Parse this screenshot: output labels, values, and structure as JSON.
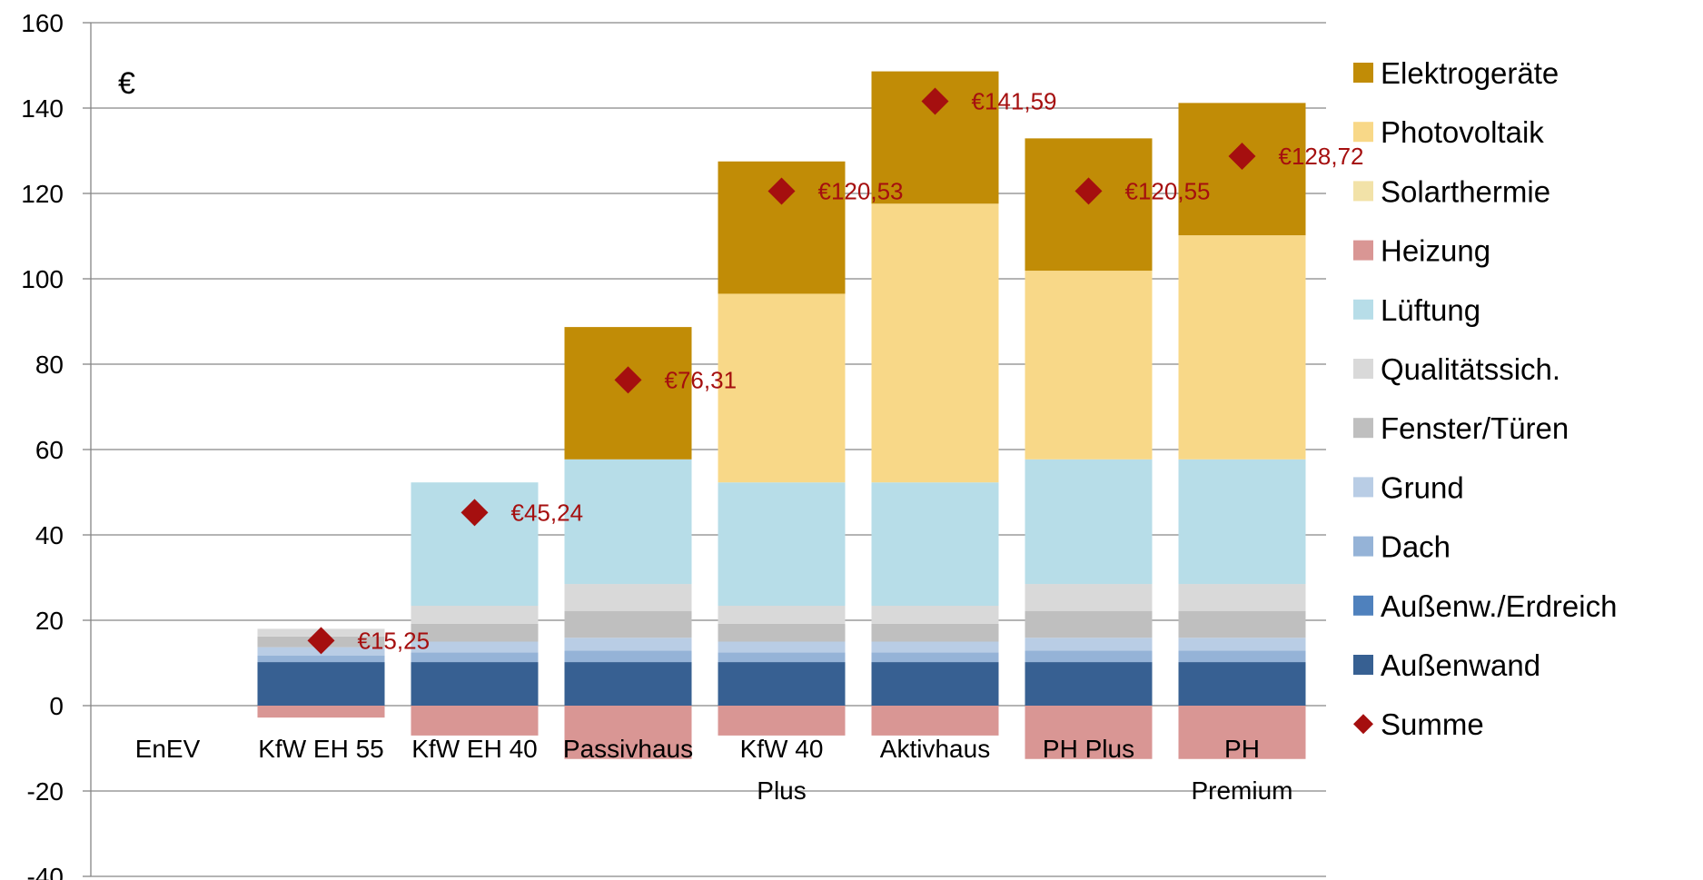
{
  "chart_data": {
    "type": "bar",
    "stacked": true,
    "unit_label": "€",
    "ylim": [
      -40,
      160
    ],
    "yticks": [
      -40,
      -20,
      0,
      20,
      40,
      60,
      80,
      100,
      120,
      140,
      160
    ],
    "grid": true,
    "legend_position": "right",
    "categories": [
      [
        "EnEV"
      ],
      [
        "KfW EH 55"
      ],
      [
        "KfW EH 40"
      ],
      [
        "Passivhaus"
      ],
      [
        "KfW 40",
        "Plus"
      ],
      [
        "Aktivhaus"
      ],
      [
        "PH Plus"
      ],
      [
        "PH",
        "Premium"
      ]
    ],
    "series": [
      {
        "name": "Außenwand",
        "color": "#376092",
        "values": [
          0,
          10.2,
          10.2,
          10.2,
          10.2,
          10.2,
          10.2,
          10.2
        ]
      },
      {
        "name": "Außenw./Erdreich",
        "color": "#4f81bd",
        "values": [
          0,
          0,
          0,
          0,
          0,
          0,
          0,
          0
        ]
      },
      {
        "name": "Dach",
        "color": "#95b3d7",
        "values": [
          0,
          1.5,
          2.3,
          2.7,
          2.3,
          2.3,
          2.7,
          2.7
        ]
      },
      {
        "name": "Grund",
        "color": "#b9cde5",
        "values": [
          0,
          2.0,
          2.5,
          3.0,
          2.5,
          2.5,
          3.0,
          3.0
        ]
      },
      {
        "name": "Fenster/Türen",
        "color": "#bfbfbf",
        "values": [
          0,
          2.5,
          4.2,
          6.3,
          4.2,
          4.2,
          6.3,
          6.3
        ]
      },
      {
        "name": "Qualitätssich.",
        "color": "#d9d9d9",
        "values": [
          0,
          1.8,
          4.2,
          6.3,
          4.2,
          4.2,
          6.3,
          6.3
        ]
      },
      {
        "name": "Lüftung",
        "color": "#b7dde8",
        "values": [
          0,
          0,
          28.9,
          29.2,
          28.9,
          28.9,
          29.2,
          29.2
        ]
      },
      {
        "name": "Heizung",
        "color": "#d99694",
        "values": [
          0,
          -2.8,
          -7.0,
          -12.5,
          -7.0,
          -7.0,
          -12.5,
          -12.5
        ]
      },
      {
        "name": "Solarthermie",
        "color": "#f2e2a8",
        "values": [
          0,
          0,
          0,
          0,
          0,
          0,
          0,
          0
        ]
      },
      {
        "name": "Photovoltaik",
        "color": "#f8d888",
        "values": [
          0,
          0,
          0,
          0,
          44.2,
          65.3,
          44.2,
          52.5
        ]
      },
      {
        "name": "Elektrogeräte",
        "color": "#c18c06",
        "values": [
          0,
          0,
          0,
          31.0,
          31.0,
          31.0,
          31.0,
          31.0
        ]
      }
    ],
    "summe": {
      "name": "Summe",
      "color": "#a50f0f",
      "values": [
        null,
        15.25,
        45.24,
        76.31,
        120.53,
        141.59,
        120.55,
        128.72
      ],
      "labels": [
        "",
        "€15,25",
        "€45,24",
        "€76,31",
        "€120,53",
        "€141,59",
        "€120,55",
        "€128,72"
      ]
    },
    "legend": [
      "Elektrogeräte",
      "Photovoltaik",
      "Solarthermie",
      "Heizung",
      "Lüftung",
      "Qualitätssich.",
      "Fenster/Türen",
      "Grund",
      "Dach",
      "Außenw./Erdreich",
      "Außenwand",
      "Summe"
    ]
  }
}
